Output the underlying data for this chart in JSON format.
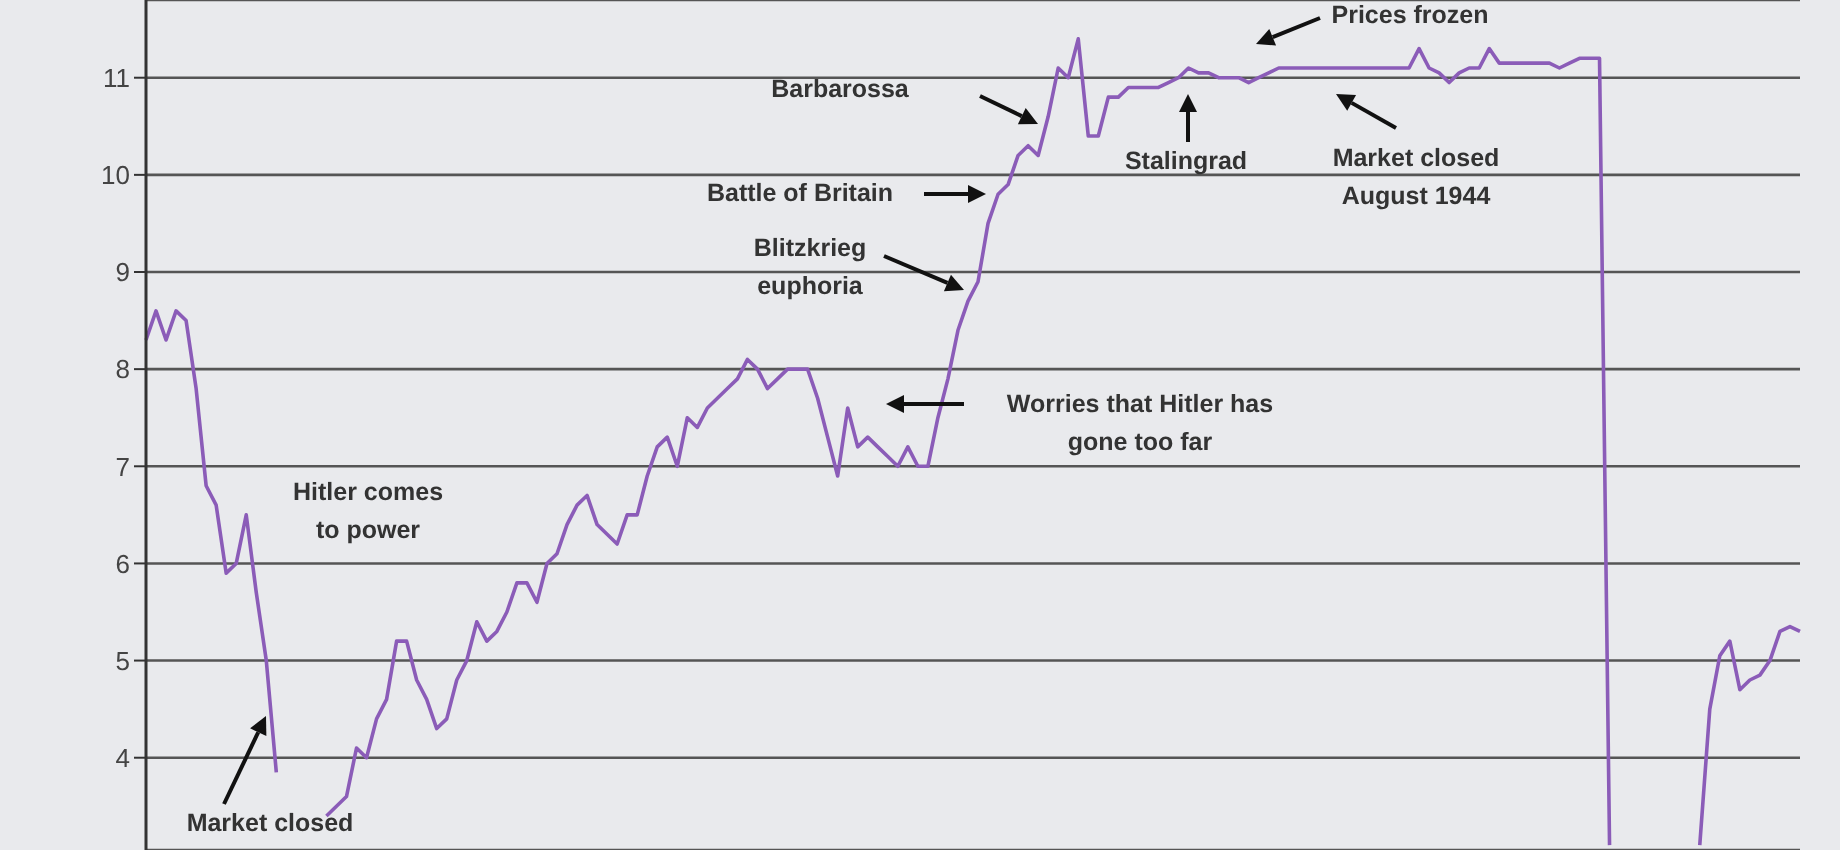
{
  "chart_data": {
    "type": "line",
    "categories": [
      null,
      null,
      null,
      null,
      null,
      null,
      null,
      null,
      null,
      null,
      null,
      null,
      null,
      null,
      null,
      null,
      null,
      null,
      null,
      null,
      null,
      null,
      null,
      null,
      null,
      null,
      null,
      null,
      null,
      null,
      null,
      null,
      null,
      null,
      null,
      null,
      null,
      null,
      null,
      null,
      null,
      null,
      null,
      null,
      null,
      null,
      null,
      null,
      null,
      null,
      null,
      null,
      null,
      null,
      null,
      null,
      null,
      null,
      null,
      null,
      null,
      null,
      null,
      null,
      null,
      null,
      null,
      null,
      null,
      null,
      null,
      null,
      null,
      null,
      null,
      null,
      null,
      null,
      null,
      null,
      null,
      null,
      null,
      null,
      null,
      null,
      null,
      null,
      null,
      null,
      null,
      null,
      null,
      null,
      null,
      null,
      null,
      null,
      null,
      null,
      null,
      null,
      null,
      null,
      null,
      null,
      null,
      null,
      null,
      null,
      null,
      null,
      null,
      null,
      null,
      null,
      null,
      null,
      null,
      null,
      null,
      null,
      null,
      null,
      null,
      null,
      null,
      null,
      null,
      null,
      null,
      null,
      null,
      null,
      null,
      null,
      null,
      null,
      null,
      null,
      null,
      null,
      null,
      null,
      null,
      null,
      null,
      null,
      null,
      null,
      null,
      null,
      null,
      null,
      null,
      null,
      null,
      null,
      null,
      null,
      null,
      null,
      null,
      null,
      null,
      null
    ],
    "series": [
      {
        "color": "#8b5cb8",
        "values": [
          8.3,
          8.6,
          8.3,
          8.6,
          8.5,
          7.8,
          6.8,
          6.6,
          5.9,
          6.0,
          6.5,
          5.7,
          5.0,
          3.85,
          null,
          null,
          null,
          null,
          null,
          null,
          null,
          null,
          null,
          null,
          null,
          null,
          null,
          null,
          null,
          null,
          null,
          null,
          null,
          null,
          null,
          null,
          null,
          null,
          null,
          null,
          null,
          null,
          null,
          null,
          null,
          null,
          null,
          null,
          null,
          null,
          null,
          null,
          null,
          null,
          null,
          null,
          null,
          null,
          null,
          null,
          null,
          null,
          null,
          null,
          null,
          null,
          null,
          null,
          null,
          null,
          null,
          null,
          null,
          null,
          null,
          null,
          null,
          null,
          null,
          null,
          null,
          null,
          null,
          null,
          null,
          null,
          null,
          null,
          null,
          null,
          null,
          null,
          null,
          null,
          null,
          null,
          null,
          null,
          null,
          null,
          null,
          null,
          null,
          null,
          null,
          null,
          null,
          null,
          null,
          null,
          null,
          null,
          null,
          null,
          null,
          null,
          null,
          null,
          null,
          null,
          null,
          null,
          null,
          null,
          null,
          null,
          null,
          null,
          null,
          null,
          null,
          null,
          null,
          null,
          null,
          null,
          null,
          null,
          null,
          null,
          null,
          null,
          null,
          null,
          null,
          null,
          null,
          null,
          null,
          null,
          null,
          null,
          null,
          null,
          null,
          null,
          null,
          null,
          null,
          null,
          null,
          null,
          null,
          null,
          null,
          null
        ]
      },
      {
        "color": "#8b5cb8",
        "values": [
          null,
          null,
          null,
          null,
          null,
          null,
          null,
          null,
          null,
          null,
          null,
          null,
          null,
          null,
          null,
          null,
          null,
          null,
          3.4,
          3.5,
          3.6,
          4.1,
          4.0,
          4.4,
          4.6,
          5.2,
          5.2,
          4.8,
          4.6,
          4.3,
          4.4,
          4.8,
          5.0,
          5.4,
          5.2,
          5.3,
          5.5,
          5.8,
          5.8,
          5.6,
          6.0,
          6.1,
          6.4,
          6.6,
          6.7,
          6.4,
          6.3,
          6.2,
          6.5,
          6.5,
          6.9,
          7.2,
          7.3,
          7.0,
          7.5,
          7.4,
          7.6,
          7.7,
          7.8,
          7.9,
          8.1,
          8.0,
          7.8,
          7.9,
          8.0,
          8.0,
          8.0,
          7.7,
          7.3,
          6.9,
          7.6,
          7.2,
          7.3,
          7.2,
          7.1,
          7.0,
          7.2,
          7.0,
          7.0,
          7.5,
          7.9,
          8.4,
          8.7,
          8.9,
          9.5,
          9.8,
          9.9,
          10.2,
          10.3,
          10.2,
          10.6,
          11.1,
          11.0,
          11.4,
          10.4,
          10.4,
          10.8,
          10.8,
          10.9,
          10.9,
          10.9,
          10.9,
          10.95,
          11.0,
          11.1,
          11.05,
          11.05,
          11.0,
          11.0,
          11.0,
          10.95,
          11.0,
          11.05,
          11.1,
          11.1,
          11.1,
          11.1,
          11.1,
          11.1,
          11.1,
          11.1,
          11.1,
          11.1,
          11.1,
          11.1,
          11.1,
          11.1,
          11.3,
          11.1,
          11.05,
          10.95,
          11.05,
          11.1,
          11.1,
          11.3,
          11.15,
          11.15,
          11.15,
          11.15,
          11.15,
          11.15,
          11.1,
          11.15,
          11.2,
          11.2,
          11.2,
          3.1,
          null,
          null,
          null,
          null,
          null,
          null,
          null,
          null,
          null,
          null,
          null,
          null,
          null,
          null,
          null,
          null,
          null,
          null,
          null
        ]
      },
      {
        "color": "#8b5cb8",
        "values": [
          null,
          null,
          null,
          null,
          null,
          null,
          null,
          null,
          null,
          null,
          null,
          null,
          null,
          null,
          null,
          null,
          null,
          null,
          null,
          null,
          null,
          null,
          null,
          null,
          null,
          null,
          null,
          null,
          null,
          null,
          null,
          null,
          null,
          null,
          null,
          null,
          null,
          null,
          null,
          null,
          null,
          null,
          null,
          null,
          null,
          null,
          null,
          null,
          null,
          null,
          null,
          null,
          null,
          null,
          null,
          null,
          null,
          null,
          null,
          null,
          null,
          null,
          null,
          null,
          null,
          null,
          null,
          null,
          null,
          null,
          null,
          null,
          null,
          null,
          null,
          null,
          null,
          null,
          null,
          null,
          null,
          null,
          null,
          null,
          null,
          null,
          null,
          null,
          null,
          null,
          null,
          null,
          null,
          null,
          null,
          null,
          null,
          null,
          null,
          null,
          null,
          null,
          null,
          null,
          null,
          null,
          null,
          null,
          null,
          null,
          null,
          null,
          null,
          null,
          null,
          null,
          null,
          null,
          null,
          null,
          null,
          null,
          null,
          null,
          null,
          null,
          null,
          null,
          null,
          null,
          null,
          null,
          null,
          null,
          null,
          null,
          null,
          null,
          null,
          null,
          null,
          null,
          null,
          null,
          null,
          null,
          null,
          null,
          null,
          null,
          null,
          null,
          null,
          null,
          null,
          3.1,
          4.5,
          5.05,
          5.2,
          4.7,
          4.8,
          4.85,
          5.0,
          5.3,
          5.35,
          5.3
        ]
      }
    ],
    "ylim": [
      3.05,
      11.8
    ],
    "yticks": [
      4,
      5,
      6,
      7,
      8,
      9,
      10,
      11
    ],
    "grid": "y",
    "tick_labels": "y",
    "marker": "none",
    "line_style": "solid",
    "annotations": [
      "Prices frozen",
      "Barbarossa",
      "Battle of Britain",
      "Blitzkrieg\neuphoria",
      "Stalingrad",
      "Market closed\nAugust 1944",
      "Worries that Hitler has\ngone too far",
      "Hitler comes\nto power",
      "Market closed"
    ]
  }
}
